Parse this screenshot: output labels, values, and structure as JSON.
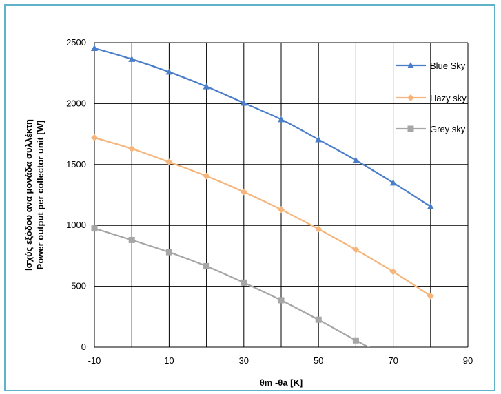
{
  "chart_data": {
    "type": "line",
    "title": "",
    "xlabel": "θm -θa [K]",
    "ylabel_lines": [
      "Ισχύς εξόδου ανα μονάδα συλλέκτη",
      "Power output per collector unit  [W]"
    ],
    "xlim": [
      -10,
      90
    ],
    "ylim": [
      0,
      2500
    ],
    "x_ticks": [
      -10,
      10,
      30,
      50,
      70,
      90
    ],
    "x_gridlines": [
      -10,
      0,
      10,
      20,
      30,
      40,
      50,
      60,
      70,
      80,
      90
    ],
    "y_ticks": [
      0,
      500,
      1000,
      1500,
      2000,
      2500
    ],
    "x_tick_labels": [
      "-10",
      "10",
      "30",
      "50",
      "70",
      "90"
    ],
    "y_tick_labels": [
      "0",
      "500",
      "1000",
      "1500",
      "2000",
      "2500"
    ],
    "grid": true,
    "legend_position": "top-right",
    "series": [
      {
        "name": "Blue Sky",
        "color": "#4a7ec8",
        "marker": "triangle",
        "x": [
          -10,
          0,
          10,
          20,
          30,
          40,
          50,
          60,
          70,
          80
        ],
        "values": [
          2455,
          2365,
          2260,
          2140,
          2005,
          1870,
          1705,
          1535,
          1350,
          1155
        ]
      },
      {
        "name": "Hazy sky",
        "color": "#f5b57c",
        "marker": "diamond",
        "x": [
          -10,
          0,
          10,
          20,
          30,
          40,
          50,
          60,
          70,
          80
        ],
        "values": [
          1720,
          1630,
          1520,
          1405,
          1275,
          1130,
          970,
          800,
          620,
          420
        ]
      },
      {
        "name": "Grey sky",
        "color": "#a6a6a6",
        "marker": "square",
        "x": [
          -10,
          0,
          10,
          20,
          30,
          40,
          50,
          60,
          64
        ],
        "values": [
          975,
          880,
          780,
          665,
          530,
          385,
          225,
          55,
          -10
        ],
        "marker_points": 8
      }
    ]
  }
}
